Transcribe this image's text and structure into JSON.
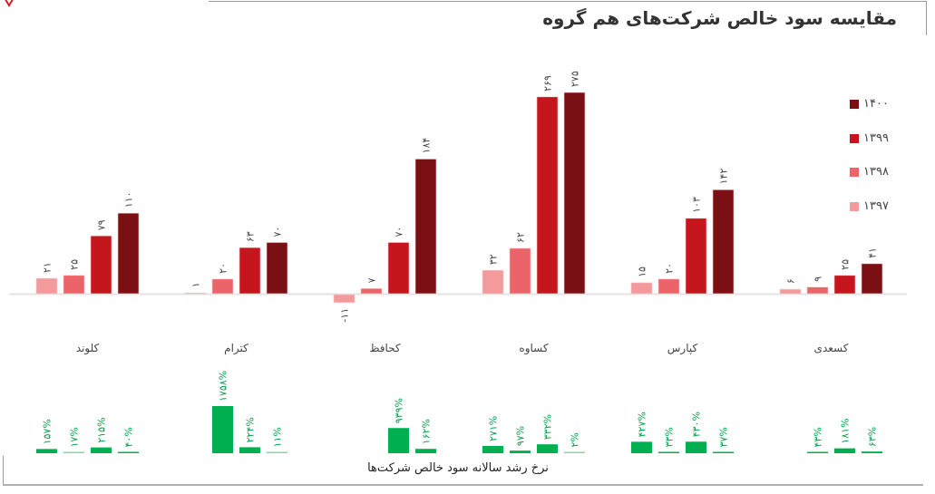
{
  "title": "مقایسه سود خالص شرکت‌های هم گروه",
  "chart_data": [
    {
      "type": "bar",
      "title": "مقایسه سود خالص شرکت‌های هم گروه",
      "categories": [
        "کلوند",
        "کترام",
        "کحافظ",
        "کساوه",
        "کپارس",
        "کسعدی"
      ],
      "legend_position": "right",
      "grid": false,
      "series": [
        {
          "name": "۱۳۹۷",
          "color": "#f29a9c",
          "values": [
            21,
            1,
            -11,
            32,
            15,
            6
          ],
          "labels": [
            "۲۱",
            "۱",
            "-۱۱",
            "۳۲",
            "۱۵",
            "۶"
          ]
        },
        {
          "name": "۱۳۹۸",
          "color": "#ec6469",
          "values": [
            25,
            20,
            7,
            62,
            20,
            9
          ],
          "labels": [
            "۲۵",
            "۲۰",
            "۷",
            "۶۲",
            "۲۰",
            "۹"
          ]
        },
        {
          "name": "۱۳۹۹",
          "color": "#c4161c",
          "values": [
            79,
            63,
            70,
            269,
            103,
            25
          ],
          "labels": [
            "۷۹",
            "۶۳",
            "۷۰",
            "۲۶۹",
            "۱۰۳",
            "۲۵"
          ]
        },
        {
          "name": "۱۴۰۰",
          "color": "#7b1014",
          "values": [
            110,
            70,
            184,
            275,
            142,
            41
          ],
          "labels": [
            "۱۱۰",
            "۷۰",
            "۱۸۴",
            "۲۷۵",
            "۱۴۲",
            "۴۱"
          ]
        }
      ],
      "legend_order": [
        "۱۴۰۰",
        "۱۳۹۹",
        "۱۳۹۸",
        "۱۳۹۷"
      ]
    },
    {
      "type": "bar",
      "title": "نرخ رشد سالانه سود خالص شرکت‌ها",
      "color": "#00b050",
      "unit": "%",
      "groups": [
        {
          "values": [
            157,
            17,
            215,
            40
          ],
          "labels": [
            "۱۵۷%",
            "۱۷%",
            "۲۱۵%",
            "۴۰%"
          ]
        },
        {
          "values": [
            null,
            1758,
            224,
            11
          ],
          "labels": [
            null,
            "۱۷۵۸%",
            "۲۲۴%",
            "۱۱%"
          ]
        },
        {
          "values": [
            null,
            null,
            939,
            162
          ],
          "labels": [
            null,
            null,
            "۹۳۹%",
            "۱۶۲%"
          ]
        },
        {
          "values": [
            271,
            97,
            332,
            2
          ],
          "labels": [
            "۲۷۱%",
            "۹۷%",
            "۳۳۲%",
            "۲%"
          ]
        },
        {
          "values": [
            427,
            33,
            430,
            37
          ],
          "labels": [
            "۴۲۷%",
            "۳۳%",
            "۴۳۰%",
            "۳۷%"
          ]
        },
        {
          "values": [
            null,
            43,
            181,
            63
          ],
          "labels": [
            null,
            "۴۳%",
            "۱۸۱%",
            "۶۳%"
          ]
        }
      ]
    }
  ]
}
